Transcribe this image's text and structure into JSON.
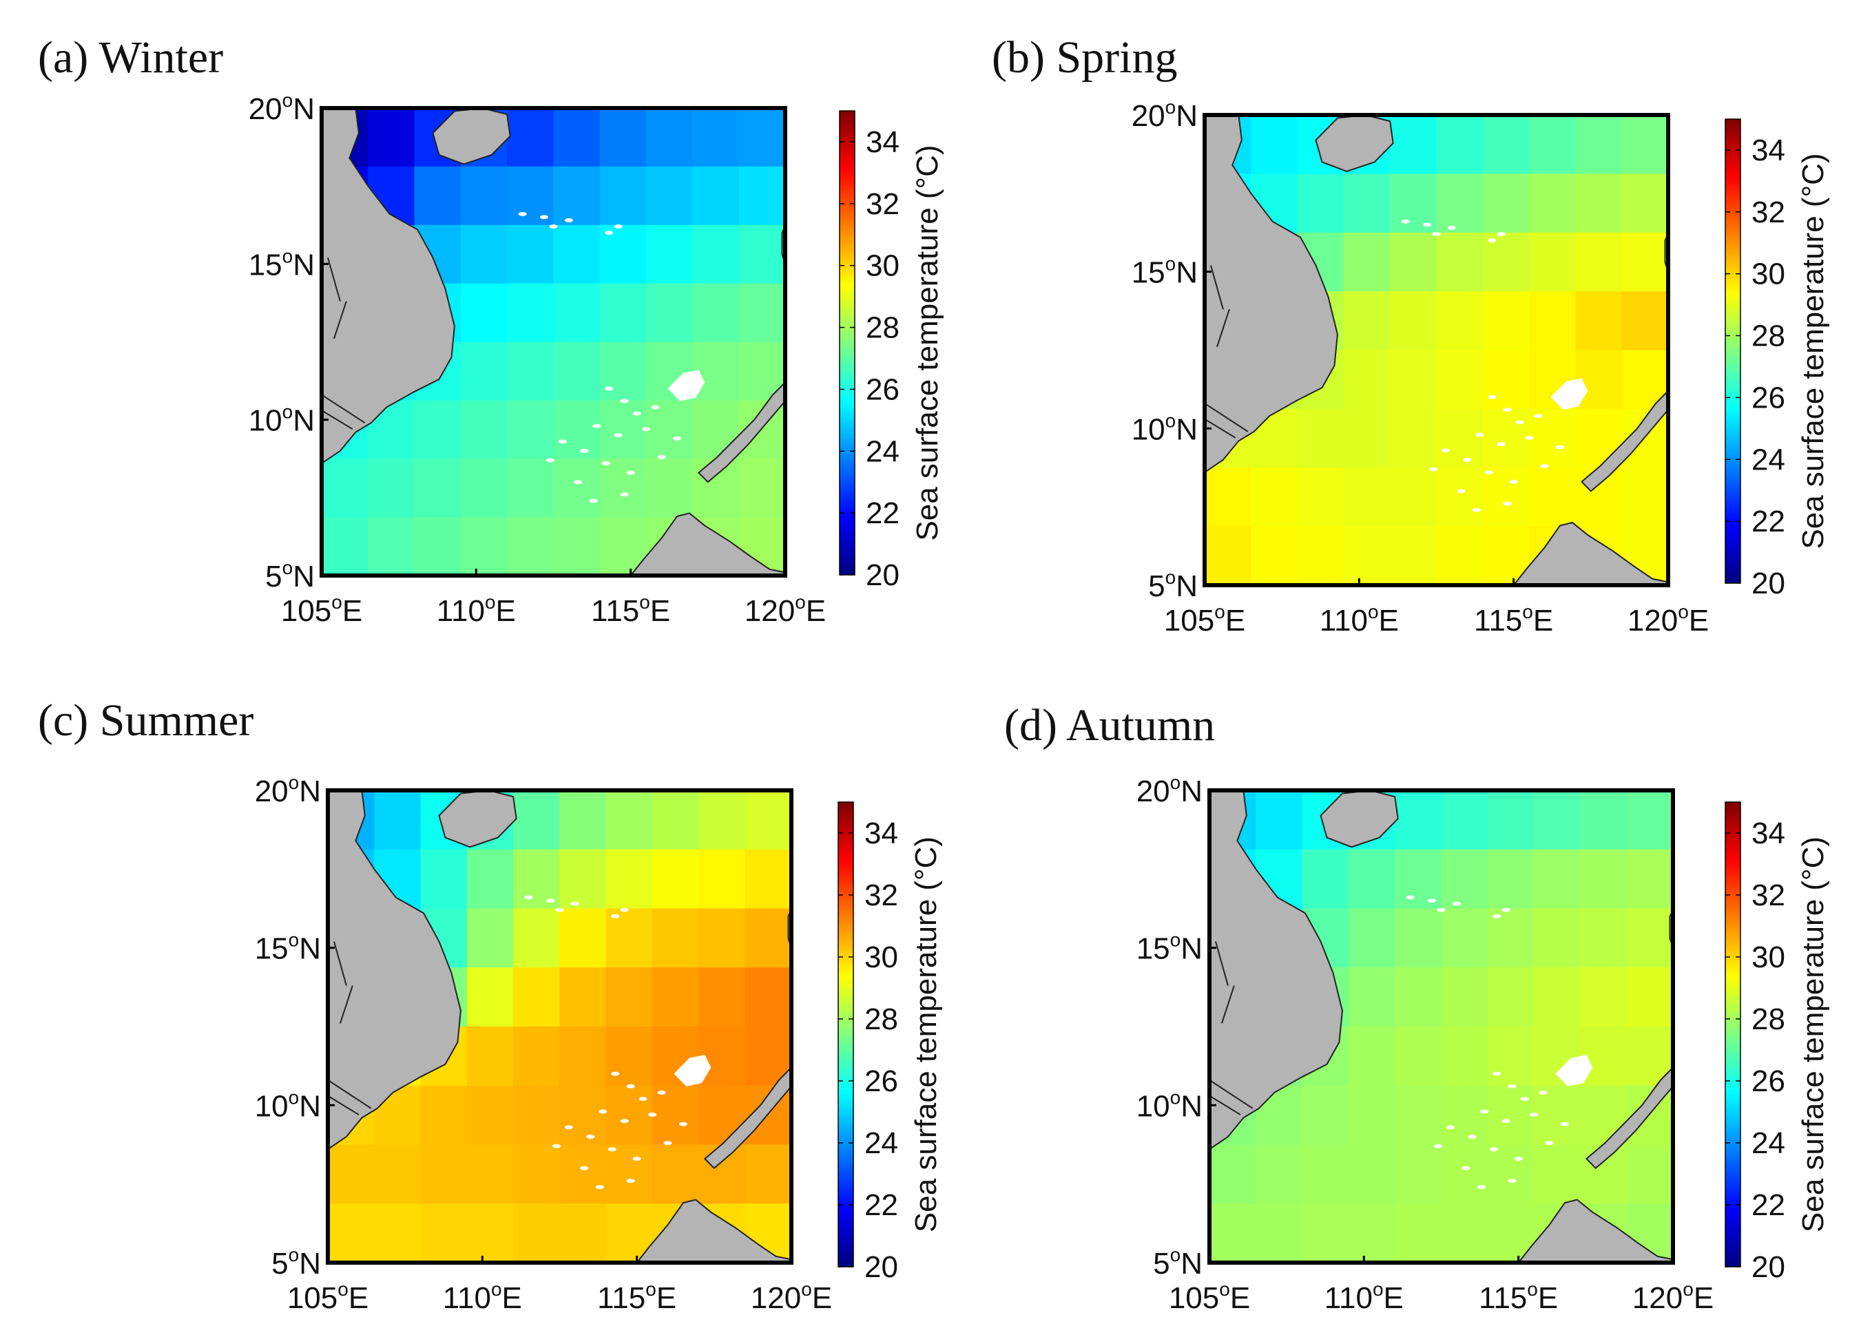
{
  "figure": {
    "colormap_colors": [
      "#00007f",
      "#0000ff",
      "#0080ff",
      "#00ffff",
      "#80ff80",
      "#ffff00",
      "#ff8000",
      "#ff0000",
      "#7f0000"
    ],
    "land_color": "#b4b4b4",
    "island_color": "#ffffff"
  },
  "chart_data": [
    {
      "id": "a",
      "type": "heatmap",
      "title": "(a) Winter",
      "x_ticks": [
        105,
        110,
        115,
        120
      ],
      "x_tick_labels": [
        "105",
        "110",
        "115",
        "120"
      ],
      "x_unit": "E",
      "y_ticks": [
        5,
        10,
        15,
        20
      ],
      "y_tick_labels": [
        "5",
        "10",
        "15",
        "20"
      ],
      "y_unit": "N",
      "xlim": [
        105,
        120
      ],
      "ylim": [
        5,
        20
      ],
      "colorbar": {
        "label": "Sea surface temperature (°C)",
        "range": [
          20,
          35
        ],
        "ticks": [
          "20",
          "22",
          "24",
          "26",
          "28",
          "30",
          "32",
          "34"
        ]
      },
      "sst_field": [
        [
          20.8,
          21.4,
          22.5,
          23.0,
          22.8,
          23.3,
          23.7,
          24.0,
          24.1,
          24.2
        ],
        [
          21.5,
          22.4,
          23.6,
          23.9,
          24.0,
          24.3,
          24.6,
          24.8,
          25.0,
          25.2
        ],
        [
          23.0,
          24.0,
          24.6,
          24.9,
          25.0,
          25.3,
          25.5,
          25.8,
          26.1,
          26.3
        ],
        [
          25.0,
          25.2,
          25.4,
          25.6,
          25.8,
          26.0,
          26.3,
          26.6,
          26.9,
          27.1
        ],
        [
          25.6,
          25.8,
          26.0,
          26.2,
          26.4,
          26.6,
          26.9,
          27.2,
          27.4,
          27.5
        ],
        [
          26.0,
          26.2,
          26.4,
          26.6,
          26.8,
          27.0,
          27.2,
          27.4,
          27.6,
          27.8
        ],
        [
          26.3,
          26.5,
          26.7,
          26.9,
          27.1,
          27.3,
          27.5,
          27.6,
          27.8,
          27.9
        ],
        [
          26.5,
          26.8,
          27.0,
          27.2,
          27.4,
          27.5,
          27.7,
          27.8,
          27.9,
          28.0
        ]
      ]
    },
    {
      "id": "b",
      "type": "heatmap",
      "title": "(b) Spring",
      "x_ticks": [
        105,
        110,
        115,
        120
      ],
      "x_tick_labels": [
        "105",
        "110",
        "115",
        "120"
      ],
      "x_unit": "E",
      "y_ticks": [
        5,
        10,
        15,
        20
      ],
      "y_tick_labels": [
        "5",
        "10",
        "15",
        "20"
      ],
      "y_unit": "N",
      "xlim": [
        105,
        120
      ],
      "ylim": [
        5,
        20
      ],
      "colorbar": {
        "label": "Sea surface temperature (°C)",
        "range": [
          20,
          35
        ],
        "ticks": [
          "20",
          "22",
          "24",
          "26",
          "28",
          "30",
          "32",
          "34"
        ]
      },
      "sst_field": [
        [
          25.2,
          25.5,
          25.7,
          25.8,
          25.9,
          26.3,
          26.6,
          26.9,
          27.2,
          27.4
        ],
        [
          25.6,
          25.9,
          26.3,
          26.6,
          27.0,
          27.4,
          27.7,
          28.0,
          28.2,
          28.4
        ],
        [
          26.2,
          26.6,
          27.2,
          27.8,
          28.2,
          28.5,
          28.7,
          28.9,
          29.1,
          29.2
        ],
        [
          27.5,
          27.9,
          28.4,
          28.7,
          28.9,
          29.1,
          29.3,
          29.5,
          29.8,
          30.0
        ],
        [
          28.3,
          28.5,
          28.7,
          28.9,
          29.0,
          29.2,
          29.4,
          29.5,
          29.6,
          29.5
        ],
        [
          29.0,
          29.0,
          28.9,
          28.9,
          29.0,
          29.1,
          29.2,
          29.3,
          29.4,
          29.3
        ],
        [
          29.5,
          29.3,
          29.2,
          29.1,
          29.1,
          29.2,
          29.3,
          29.4,
          29.4,
          29.3
        ],
        [
          29.6,
          29.4,
          29.3,
          29.2,
          29.2,
          29.3,
          29.4,
          29.5,
          29.4,
          29.3
        ]
      ]
    },
    {
      "id": "c",
      "type": "heatmap",
      "title": "(c) Summer",
      "x_ticks": [
        105,
        110,
        115,
        120
      ],
      "x_tick_labels": [
        "105",
        "110",
        "115",
        "120"
      ],
      "x_unit": "E",
      "y_ticks": [
        5,
        10,
        15,
        20
      ],
      "y_tick_labels": [
        "5",
        "10",
        "15",
        "20"
      ],
      "y_unit": "N",
      "xlim": [
        105,
        120
      ],
      "ylim": [
        5,
        20
      ],
      "colorbar": {
        "label": "Sea surface temperature (°C)",
        "range": [
          20,
          35
        ],
        "ticks": [
          "20",
          "22",
          "24",
          "26",
          "28",
          "30",
          "32",
          "34"
        ]
      },
      "sst_field": [
        [
          24.5,
          25.0,
          25.8,
          26.4,
          27.0,
          27.6,
          28.0,
          28.3,
          28.6,
          28.8
        ],
        [
          24.8,
          25.3,
          26.2,
          27.2,
          28.0,
          28.6,
          29.0,
          29.3,
          29.5,
          29.7
        ],
        [
          25.2,
          25.5,
          26.4,
          27.8,
          28.8,
          29.6,
          30.0,
          30.2,
          30.3,
          30.5
        ],
        [
          25.6,
          26.0,
          27.5,
          29.0,
          29.8,
          30.3,
          30.6,
          30.8,
          31.0,
          31.2
        ],
        [
          29.4,
          29.6,
          29.9,
          30.2,
          30.4,
          30.6,
          30.8,
          31.0,
          31.1,
          31.2
        ],
        [
          30.0,
          30.1,
          30.3,
          30.4,
          30.5,
          30.6,
          30.7,
          30.9,
          31.0,
          31.0
        ],
        [
          30.2,
          30.2,
          30.3,
          30.3,
          30.4,
          30.5,
          30.5,
          30.6,
          30.6,
          30.5
        ],
        [
          29.9,
          29.9,
          30.0,
          30.0,
          30.1,
          30.1,
          30.0,
          30.0,
          29.9,
          29.8
        ]
      ]
    },
    {
      "id": "d",
      "type": "heatmap",
      "title": "(d) Autumn",
      "x_ticks": [
        105,
        110,
        115,
        120
      ],
      "x_tick_labels": [
        "105",
        "110",
        "115",
        "120"
      ],
      "x_unit": "E",
      "y_ticks": [
        5,
        10,
        15,
        20
      ],
      "y_tick_labels": [
        "5",
        "10",
        "15",
        "20"
      ],
      "y_unit": "N",
      "xlim": [
        105,
        120
      ],
      "ylim": [
        5,
        20
      ],
      "colorbar": {
        "label": "Sea surface temperature (°C)",
        "range": [
          20,
          35
        ],
        "ticks": [
          "20",
          "22",
          "24",
          "26",
          "28",
          "30",
          "32",
          "34"
        ]
      },
      "sst_field": [
        [
          25.0,
          25.3,
          25.8,
          26.0,
          26.2,
          26.4,
          26.6,
          26.8,
          27.0,
          27.1
        ],
        [
          25.4,
          25.8,
          26.5,
          26.9,
          27.2,
          27.5,
          27.7,
          27.9,
          28.0,
          28.1
        ],
        [
          25.8,
          26.2,
          26.9,
          27.4,
          27.7,
          27.9,
          28.1,
          28.3,
          28.4,
          28.5
        ],
        [
          26.4,
          26.8,
          27.4,
          27.8,
          28.0,
          28.2,
          28.4,
          28.6,
          28.8,
          28.9
        ],
        [
          27.5,
          27.6,
          27.8,
          28.0,
          28.2,
          28.3,
          28.5,
          28.6,
          28.7,
          28.7
        ],
        [
          27.6,
          27.8,
          27.9,
          28.0,
          28.1,
          28.2,
          28.3,
          28.4,
          28.4,
          28.3
        ],
        [
          27.8,
          27.9,
          28.0,
          28.0,
          28.1,
          28.2,
          28.2,
          28.3,
          28.3,
          28.2
        ],
        [
          28.0,
          28.0,
          28.1,
          28.1,
          28.2,
          28.2,
          28.2,
          28.2,
          28.1,
          28.0
        ]
      ]
    }
  ]
}
